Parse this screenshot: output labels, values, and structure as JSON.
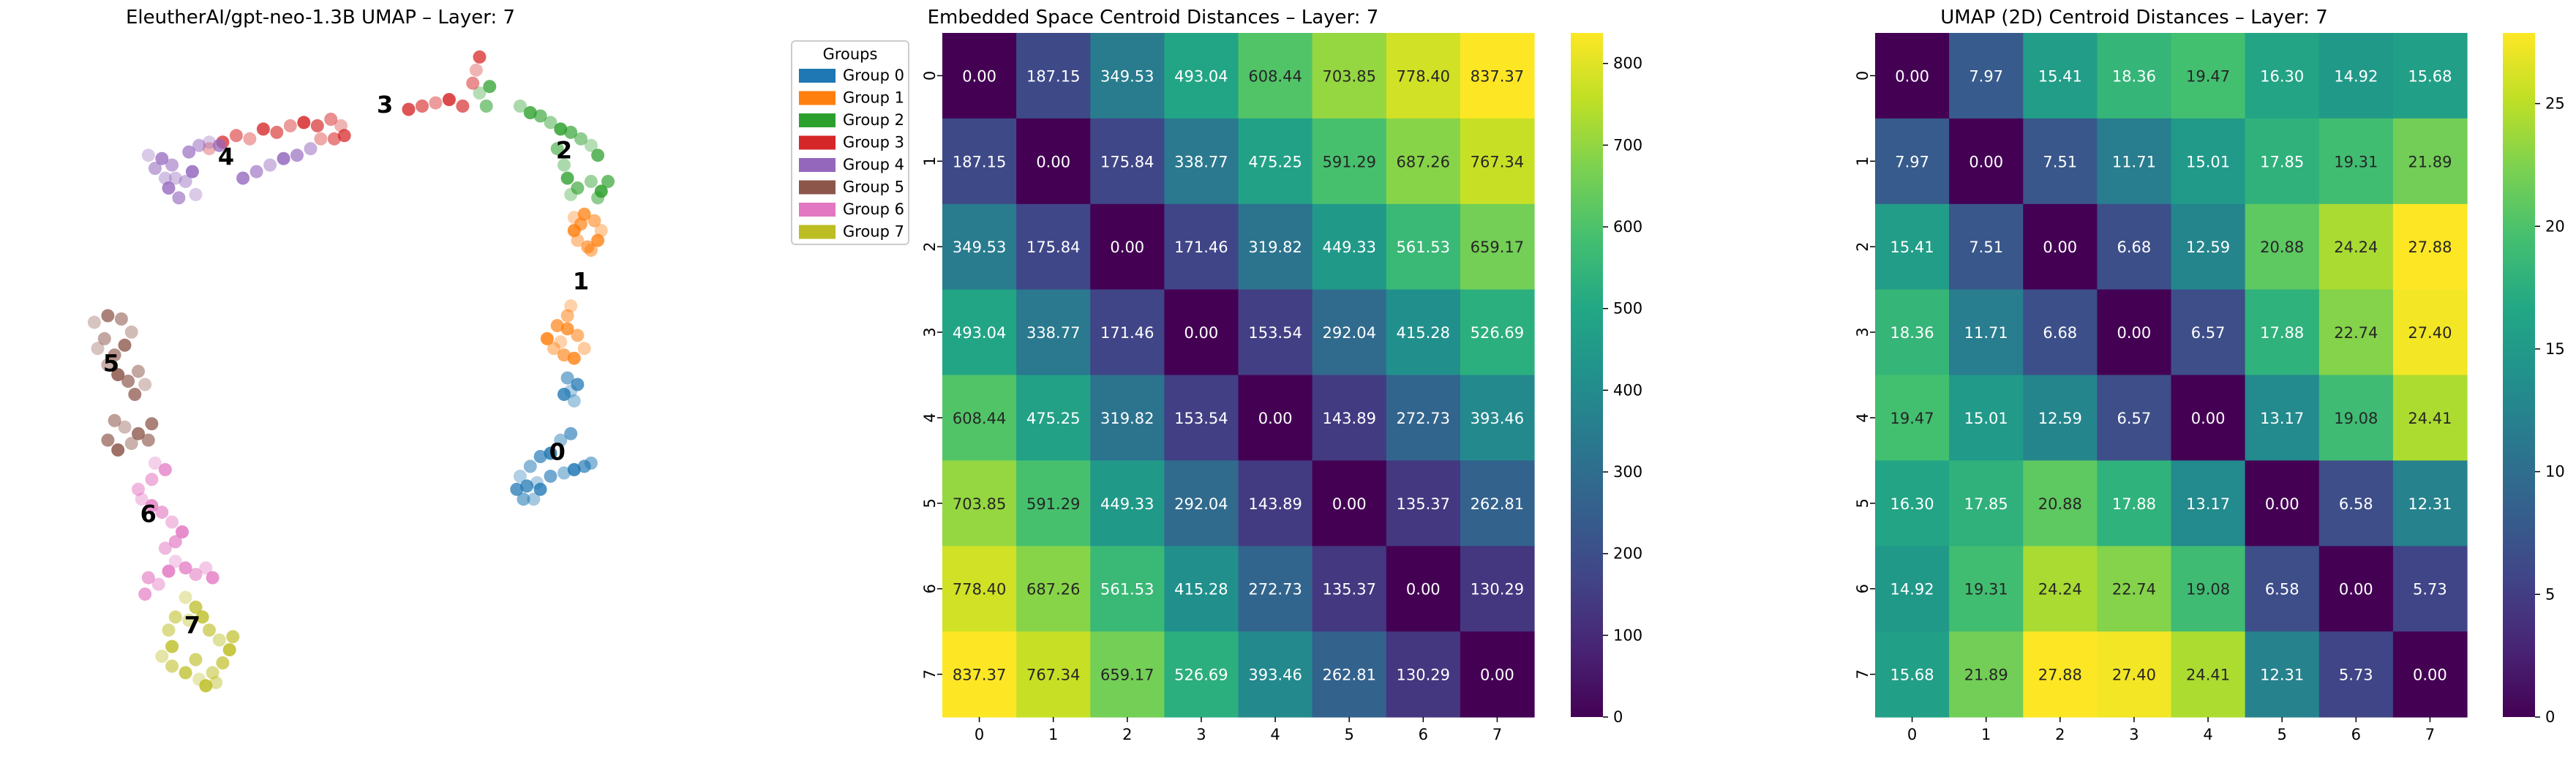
{
  "chart_data": [
    {
      "type": "scatter",
      "title": "EleutherAI/gpt-neo-1.3B UMAP – Layer: 7",
      "legend": {
        "title": "Groups",
        "placement": "outside-top-right",
        "entries": [
          "Group 0",
          "Group 1",
          "Group 2",
          "Group 3",
          "Group 4",
          "Group 5",
          "Group 6",
          "Group 7"
        ]
      },
      "axes_visible": false,
      "xlim": [
        -1.0,
        20.0
      ],
      "ylim": [
        -0.5,
        20.5
      ],
      "series": [
        {
          "name": "Group 0",
          "color": "#1f77b4",
          "label": "0",
          "label_pos": [
            14.3,
            7.8
          ],
          "points": [
            [
              14.7,
              9.9
            ],
            [
              14.9,
              10.1
            ],
            [
              14.6,
              10.3
            ],
            [
              14.8,
              9.6
            ],
            [
              14.5,
              9.8
            ],
            [
              14.7,
              8.6
            ],
            [
              14.4,
              8.4
            ],
            [
              14.1,
              8.0
            ],
            [
              13.8,
              7.9
            ],
            [
              13.5,
              7.6
            ],
            [
              13.2,
              7.3
            ],
            [
              13.1,
              6.9
            ],
            [
              13.3,
              6.6
            ],
            [
              13.6,
              6.6
            ],
            [
              13.8,
              6.9
            ],
            [
              14.1,
              7.3
            ],
            [
              14.5,
              7.4
            ],
            [
              14.8,
              7.5
            ],
            [
              15.1,
              7.6
            ],
            [
              15.3,
              7.7
            ],
            [
              13.7,
              7.1
            ],
            [
              13.4,
              7.0
            ]
          ]
        },
        {
          "name": "Group 1",
          "color": "#ff7f0e",
          "label": "1",
          "label_pos": [
            15.0,
            13.0
          ],
          "points": [
            [
              14.8,
              15.2
            ],
            [
              15.1,
              15.3
            ],
            [
              15.4,
              15.1
            ],
            [
              15.6,
              14.8
            ],
            [
              15.5,
              14.5
            ],
            [
              15.2,
              14.3
            ],
            [
              14.9,
              14.5
            ],
            [
              14.8,
              14.8
            ],
            [
              15.0,
              15.0
            ],
            [
              15.3,
              14.2
            ],
            [
              14.4,
              11.4
            ],
            [
              14.6,
              11.8
            ],
            [
              14.9,
              11.6
            ],
            [
              15.1,
              11.2
            ],
            [
              14.8,
              10.9
            ],
            [
              14.5,
              11.0
            ],
            [
              14.2,
              11.2
            ],
            [
              14.0,
              11.5
            ],
            [
              14.3,
              11.9
            ],
            [
              14.6,
              12.2
            ],
            [
              14.7,
              12.5
            ]
          ]
        },
        {
          "name": "Group 2",
          "color": "#2ca02c",
          "label": "2",
          "label_pos": [
            14.5,
            17.0
          ],
          "points": [
            [
              12.0,
              19.0
            ],
            [
              12.3,
              19.2
            ],
            [
              12.2,
              18.6
            ],
            [
              13.2,
              18.6
            ],
            [
              13.5,
              18.4
            ],
            [
              13.8,
              18.3
            ],
            [
              14.1,
              18.1
            ],
            [
              14.4,
              17.9
            ],
            [
              14.7,
              17.8
            ],
            [
              15.0,
              17.6
            ],
            [
              15.3,
              17.4
            ],
            [
              15.5,
              17.1
            ],
            [
              14.3,
              17.3
            ],
            [
              14.5,
              16.8
            ],
            [
              14.6,
              16.4
            ],
            [
              14.9,
              16.1
            ],
            [
              15.3,
              16.3
            ],
            [
              15.6,
              16.0
            ],
            [
              15.8,
              16.3
            ],
            [
              15.5,
              15.8
            ],
            [
              14.7,
              15.9
            ]
          ]
        },
        {
          "name": "Group 3",
          "color": "#d62728",
          "label": "3",
          "label_pos": [
            9.2,
            18.4
          ],
          "points": [
            [
              4.0,
              17.3
            ],
            [
              4.4,
              17.5
            ],
            [
              4.8,
              17.7
            ],
            [
              5.2,
              17.6
            ],
            [
              5.6,
              17.9
            ],
            [
              6.0,
              17.8
            ],
            [
              6.4,
              18.0
            ],
            [
              6.8,
              18.1
            ],
            [
              7.2,
              18.0
            ],
            [
              7.6,
              18.2
            ],
            [
              7.9,
              18.0
            ],
            [
              8.0,
              17.7
            ],
            [
              7.7,
              17.6
            ],
            [
              7.3,
              17.6
            ],
            [
              9.9,
              18.5
            ],
            [
              10.3,
              18.6
            ],
            [
              10.7,
              18.7
            ],
            [
              11.1,
              18.8
            ],
            [
              11.5,
              18.6
            ],
            [
              11.8,
              19.3
            ],
            [
              11.9,
              19.7
            ],
            [
              12.0,
              20.1
            ]
          ]
        },
        {
          "name": "Group 4",
          "color": "#9467bd",
          "label": "4",
          "label_pos": [
            4.5,
            16.8
          ],
          "points": [
            [
              2.2,
              17.1
            ],
            [
              2.6,
              17.0
            ],
            [
              2.9,
              16.8
            ],
            [
              3.0,
              16.4
            ],
            [
              2.8,
              16.1
            ],
            [
              3.1,
              15.8
            ],
            [
              3.3,
              16.3
            ],
            [
              3.5,
              16.6
            ],
            [
              3.4,
              17.2
            ],
            [
              3.7,
              17.4
            ],
            [
              4.0,
              17.5
            ],
            [
              4.3,
              17.4
            ],
            [
              2.4,
              16.7
            ],
            [
              2.7,
              16.4
            ],
            [
              5.0,
              16.4
            ],
            [
              5.4,
              16.6
            ],
            [
              5.8,
              16.8
            ],
            [
              6.2,
              17.0
            ],
            [
              6.6,
              17.1
            ],
            [
              7.0,
              17.3
            ],
            [
              3.6,
              15.9
            ]
          ]
        },
        {
          "name": "Group 5",
          "color": "#8c564b",
          "label": "5",
          "label_pos": [
            1.1,
            10.5
          ],
          "points": [
            [
              0.6,
              12.0
            ],
            [
              1.0,
              12.2
            ],
            [
              1.4,
              12.1
            ],
            [
              1.7,
              11.7
            ],
            [
              1.5,
              11.3
            ],
            [
              1.2,
              11.0
            ],
            [
              1.0,
              10.7
            ],
            [
              1.3,
              10.4
            ],
            [
              1.6,
              10.2
            ],
            [
              1.9,
              10.5
            ],
            [
              2.1,
              10.1
            ],
            [
              1.8,
              9.8
            ],
            [
              1.2,
              9.0
            ],
            [
              1.5,
              8.8
            ],
            [
              1.9,
              8.6
            ],
            [
              2.2,
              8.4
            ],
            [
              1.7,
              8.3
            ],
            [
              1.3,
              8.1
            ],
            [
              1.0,
              8.4
            ],
            [
              0.9,
              11.5
            ],
            [
              0.7,
              11.2
            ],
            [
              2.3,
              8.9
            ]
          ]
        },
        {
          "name": "Group 6",
          "color": "#e377c2",
          "label": "6",
          "label_pos": [
            2.2,
            5.9
          ],
          "points": [
            [
              2.4,
              7.7
            ],
            [
              2.7,
              7.5
            ],
            [
              2.3,
              7.2
            ],
            [
              2.0,
              6.6
            ],
            [
              2.3,
              6.4
            ],
            [
              2.6,
              6.2
            ],
            [
              2.9,
              5.9
            ],
            [
              3.2,
              5.6
            ],
            [
              3.0,
              5.3
            ],
            [
              2.7,
              5.1
            ],
            [
              3.0,
              4.7
            ],
            [
              3.3,
              4.5
            ],
            [
              3.6,
              4.3
            ],
            [
              3.9,
              4.5
            ],
            [
              4.1,
              4.2
            ],
            [
              2.2,
              4.2
            ],
            [
              2.5,
              4.0
            ],
            [
              2.8,
              4.4
            ],
            [
              2.1,
              3.7
            ],
            [
              1.9,
              6.9
            ]
          ]
        },
        {
          "name": "Group 7",
          "color": "#bcbd22",
          "label": "7",
          "label_pos": [
            3.5,
            2.5
          ],
          "points": [
            [
              3.3,
              3.6
            ],
            [
              3.6,
              3.3
            ],
            [
              3.0,
              3.0
            ],
            [
              3.4,
              2.9
            ],
            [
              3.8,
              3.0
            ],
            [
              4.0,
              2.6
            ],
            [
              4.3,
              2.3
            ],
            [
              4.6,
              2.0
            ],
            [
              4.4,
              1.6
            ],
            [
              4.1,
              1.3
            ],
            [
              3.7,
              1.1
            ],
            [
              3.3,
              1.3
            ],
            [
              2.9,
              1.5
            ],
            [
              2.6,
              1.8
            ],
            [
              2.9,
              2.1
            ],
            [
              3.6,
              1.7
            ],
            [
              4.2,
              1.0
            ],
            [
              3.9,
              0.9
            ],
            [
              4.7,
              2.4
            ],
            [
              2.8,
              2.6
            ]
          ]
        }
      ]
    },
    {
      "type": "heatmap",
      "title": "Embedded Space Centroid Distances – Layer: 7",
      "xlabel": "",
      "ylabel": "",
      "x_categories": [
        "0",
        "1",
        "2",
        "3",
        "4",
        "5",
        "6",
        "7"
      ],
      "y_categories": [
        "0",
        "1",
        "2",
        "3",
        "4",
        "5",
        "6",
        "7"
      ],
      "colormap": "viridis",
      "vmin": 0,
      "vmax": 837.37,
      "colorbar_ticks": [
        "0",
        "100",
        "200",
        "300",
        "400",
        "500",
        "600",
        "700",
        "800"
      ],
      "values": [
        [
          0.0,
          187.15,
          349.53,
          493.04,
          608.44,
          703.85,
          778.4,
          837.37
        ],
        [
          187.15,
          0.0,
          175.84,
          338.77,
          475.25,
          591.29,
          687.26,
          767.34
        ],
        [
          349.53,
          175.84,
          0.0,
          171.46,
          319.82,
          449.33,
          561.53,
          659.17
        ],
        [
          493.04,
          338.77,
          171.46,
          0.0,
          153.54,
          292.04,
          415.28,
          526.69
        ],
        [
          608.44,
          475.25,
          319.82,
          153.54,
          0.0,
          143.89,
          272.73,
          393.46
        ],
        [
          703.85,
          591.29,
          449.33,
          292.04,
          143.89,
          0.0,
          135.37,
          262.81
        ],
        [
          778.4,
          687.26,
          561.53,
          415.28,
          272.73,
          135.37,
          0.0,
          130.29
        ],
        [
          837.37,
          767.34,
          659.17,
          526.69,
          393.46,
          262.81,
          130.29,
          0.0
        ]
      ]
    },
    {
      "type": "heatmap",
      "title": "UMAP (2D) Centroid Distances – Layer: 7",
      "xlabel": "",
      "ylabel": "",
      "x_categories": [
        "0",
        "1",
        "2",
        "3",
        "4",
        "5",
        "6",
        "7"
      ],
      "y_categories": [
        "0",
        "1",
        "2",
        "3",
        "4",
        "5",
        "6",
        "7"
      ],
      "colormap": "viridis",
      "vmin": 0,
      "vmax": 27.88,
      "colorbar_ticks": [
        "0",
        "5",
        "10",
        "15",
        "20",
        "25"
      ],
      "values": [
        [
          0.0,
          7.97,
          15.41,
          18.36,
          19.47,
          16.3,
          14.92,
          15.68
        ],
        [
          7.97,
          0.0,
          7.51,
          11.71,
          15.01,
          17.85,
          19.31,
          21.89
        ],
        [
          15.41,
          7.51,
          0.0,
          6.68,
          12.59,
          20.88,
          24.24,
          27.88
        ],
        [
          18.36,
          11.71,
          6.68,
          0.0,
          6.57,
          17.88,
          22.74,
          27.4
        ],
        [
          19.47,
          15.01,
          12.59,
          6.57,
          0.0,
          13.17,
          19.08,
          24.41
        ],
        [
          16.3,
          17.85,
          20.88,
          17.88,
          13.17,
          0.0,
          6.58,
          12.31
        ],
        [
          14.92,
          19.31,
          24.24,
          22.74,
          19.08,
          6.58,
          0.0,
          5.73
        ],
        [
          15.68,
          21.89,
          27.88,
          27.4,
          24.41,
          12.31,
          5.73,
          0.0
        ]
      ]
    }
  ]
}
